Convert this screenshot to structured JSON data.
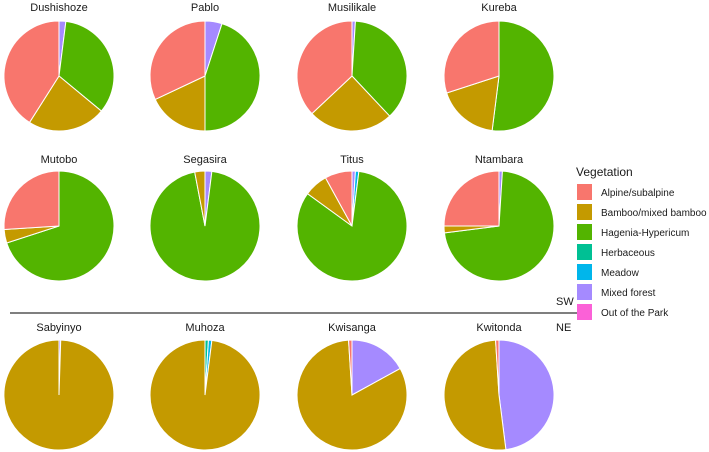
{
  "categories": [
    "Alpine/subalpine",
    "Bamboo/mixed bamboo",
    "Hagenia-Hypericum",
    "Herbaceous",
    "Meadow",
    "Mixed forest",
    "Out of the Park"
  ],
  "colors": {
    "Alpine/subalpine": "#F8766D",
    "Bamboo/mixed bamboo": "#C49A00",
    "Hagenia-Hypericum": "#53B400",
    "Herbaceous": "#00C094",
    "Meadow": "#00B6EB",
    "Mixed forest": "#A58AFF",
    "Out of the Park": "#FB61D7"
  },
  "legend": {
    "title": "Vegetation",
    "items": [
      "Alpine/subalpine",
      "Bamboo/mixed bamboo",
      "Hagenia-Hypericum",
      "Herbaceous",
      "Meadow",
      "Mixed forest",
      "Out of the Park"
    ]
  },
  "divider": {
    "above": "SW",
    "below": "NE"
  },
  "chart_data": {
    "type": "pie",
    "panels": [
      {
        "title": "Dushishoze",
        "slices": [
          {
            "category": "Mixed forest",
            "value": 2
          },
          {
            "category": "Hagenia-Hypericum",
            "value": 34
          },
          {
            "category": "Bamboo/mixed bamboo",
            "value": 23
          },
          {
            "category": "Alpine/subalpine",
            "value": 41
          }
        ]
      },
      {
        "title": "Pablo",
        "slices": [
          {
            "category": "Mixed forest",
            "value": 5
          },
          {
            "category": "Hagenia-Hypericum",
            "value": 45
          },
          {
            "category": "Bamboo/mixed bamboo",
            "value": 18
          },
          {
            "category": "Alpine/subalpine",
            "value": 32
          }
        ]
      },
      {
        "title": "Musilikale",
        "slices": [
          {
            "category": "Mixed forest",
            "value": 1
          },
          {
            "category": "Hagenia-Hypericum",
            "value": 37
          },
          {
            "category": "Bamboo/mixed bamboo",
            "value": 25
          },
          {
            "category": "Alpine/subalpine",
            "value": 37
          }
        ]
      },
      {
        "title": "Kureba",
        "slices": [
          {
            "category": "Hagenia-Hypericum",
            "value": 52
          },
          {
            "category": "Bamboo/mixed bamboo",
            "value": 18
          },
          {
            "category": "Alpine/subalpine",
            "value": 30
          }
        ]
      },
      {
        "title": "Mutobo",
        "slices": [
          {
            "category": "Hagenia-Hypericum",
            "value": 70
          },
          {
            "category": "Bamboo/mixed bamboo",
            "value": 4
          },
          {
            "category": "Alpine/subalpine",
            "value": 26
          }
        ]
      },
      {
        "title": "Segasira",
        "slices": [
          {
            "category": "Mixed forest",
            "value": 2
          },
          {
            "category": "Hagenia-Hypericum",
            "value": 95
          },
          {
            "category": "Bamboo/mixed bamboo",
            "value": 3
          }
        ]
      },
      {
        "title": "Titus",
        "slices": [
          {
            "category": "Mixed forest",
            "value": 1
          },
          {
            "category": "Meadow",
            "value": 1
          },
          {
            "category": "Hagenia-Hypericum",
            "value": 83
          },
          {
            "category": "Bamboo/mixed bamboo",
            "value": 7
          },
          {
            "category": "Alpine/subalpine",
            "value": 8
          }
        ]
      },
      {
        "title": "Ntambara",
        "slices": [
          {
            "category": "Mixed forest",
            "value": 1
          },
          {
            "category": "Hagenia-Hypericum",
            "value": 72
          },
          {
            "category": "Bamboo/mixed bamboo",
            "value": 2
          },
          {
            "category": "Alpine/subalpine",
            "value": 25
          }
        ]
      },
      {
        "title": "Sabyinyo",
        "slices": [
          {
            "category": "Mixed forest",
            "value": 0.5
          },
          {
            "category": "Bamboo/mixed bamboo",
            "value": 99.5
          }
        ]
      },
      {
        "title": "Muhoza",
        "slices": [
          {
            "category": "Herbaceous",
            "value": 1
          },
          {
            "category": "Meadow",
            "value": 1
          },
          {
            "category": "Bamboo/mixed bamboo",
            "value": 98
          }
        ]
      },
      {
        "title": "Kwisanga",
        "slices": [
          {
            "category": "Mixed forest",
            "value": 17
          },
          {
            "category": "Bamboo/mixed bamboo",
            "value": 82
          },
          {
            "category": "Alpine/subalpine",
            "value": 1
          }
        ]
      },
      {
        "title": "Kwitonda",
        "slices": [
          {
            "category": "Mixed forest",
            "value": 48
          },
          {
            "category": "Bamboo/mixed bamboo",
            "value": 51
          },
          {
            "category": "Alpine/subalpine",
            "value": 1
          }
        ]
      }
    ]
  }
}
